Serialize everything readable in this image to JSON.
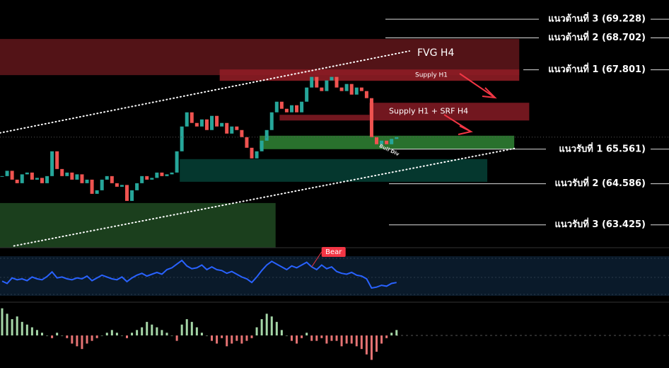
{
  "chart_data": {
    "type": "candlestick",
    "ylim": [
      62.78,
      69.77
    ],
    "closes": [
      64.8,
      64.95,
      64.7,
      64.6,
      64.85,
      64.9,
      64.7,
      64.75,
      64.6,
      64.8,
      65.5,
      65.0,
      64.8,
      64.9,
      64.7,
      64.85,
      64.6,
      64.7,
      64.3,
      64.4,
      64.7,
      64.8,
      64.6,
      64.5,
      64.55,
      64.1,
      64.4,
      64.6,
      64.8,
      64.7,
      64.75,
      64.9,
      64.8,
      64.85,
      64.9,
      65.5,
      66.2,
      66.6,
      66.3,
      66.2,
      66.4,
      66.1,
      66.5,
      66.2,
      66.3,
      66.0,
      66.2,
      66.1,
      65.9,
      65.6,
      65.3,
      65.5,
      65.8,
      66.1,
      66.6,
      66.9,
      66.7,
      66.6,
      66.8,
      66.6,
      66.9,
      67.3,
      67.6,
      67.3,
      67.2,
      67.5,
      67.6,
      67.3,
      67.2,
      67.4,
      67.1,
      67.3,
      67.2,
      67.0,
      65.9,
      65.7,
      65.8,
      65.7,
      65.85,
      65.9
    ],
    "up_color": "#26a69a",
    "down_color": "#ef5350",
    "levels": [
      {
        "label": "แนวต้านที่ 3 (69.228)",
        "value": 69.228
      },
      {
        "label": "แนวต้านที่ 2 (68.702)",
        "value": 68.702
      },
      {
        "label": "แนวต้านที่ 1 (67.801)",
        "value": 67.801
      },
      {
        "label": "แนวรับที่ 1  65.561)",
        "value": 65.561
      },
      {
        "label": "แนวรับที่ 2  (64.586)",
        "value": 64.586
      },
      {
        "label": "แนวรับที่ 3 (63.425)",
        "value": 63.425
      }
    ],
    "zones": [
      {
        "label": "FVG H4",
        "low": 67.65,
        "high": 68.67,
        "start": 0,
        "end": 104,
        "color": "#5c1519"
      },
      {
        "label": "Supply H1",
        "low": 67.49,
        "high": 67.81,
        "start": 44,
        "end": 104,
        "color": "#8e1d25"
      },
      {
        "label": "Supply H1 + SRF H4",
        "low": 66.37,
        "high": 66.87,
        "start": 74,
        "end": 106,
        "color": "#7e1a22"
      },
      {
        "low": 66.37,
        "high": 66.53,
        "start": 56,
        "end": 74,
        "color": "#7e1a22"
      },
      {
        "low": 65.56,
        "high": 65.94,
        "start": 52,
        "end": 103,
        "color": "#2e7d32"
      },
      {
        "low": 64.64,
        "high": 65.28,
        "start": 36,
        "end": 97.6,
        "color": "#063d33"
      },
      {
        "low": 62.78,
        "high": 64.04,
        "start": 0,
        "end": 55.2,
        "color": "#1e4620"
      }
    ],
    "trendlines": [
      {
        "x": [
          0,
          82
        ],
        "values": [
          66.02,
          68.33
        ]
      },
      {
        "x": [
          2.8,
          103
        ],
        "values": [
          62.83,
          65.58
        ]
      }
    ],
    "annotations": [
      {
        "text": "Bull Div",
        "x": 76,
        "value": 65.66
      }
    ],
    "oscillator": {
      "ylim": [
        0,
        100
      ],
      "color": "#2962ff",
      "label": "Bear",
      "label_index": 62,
      "values": [
        35,
        30,
        42,
        38,
        40,
        36,
        44,
        40,
        38,
        45,
        55,
        42,
        44,
        40,
        38,
        42,
        40,
        46,
        36,
        42,
        48,
        44,
        40,
        38,
        44,
        34,
        42,
        48,
        52,
        46,
        50,
        54,
        50,
        60,
        64,
        72,
        80,
        68,
        62,
        64,
        70,
        60,
        66,
        60,
        58,
        52,
        56,
        50,
        44,
        40,
        32,
        44,
        58,
        70,
        78,
        72,
        66,
        60,
        68,
        64,
        70,
        76,
        66,
        60,
        70,
        62,
        66,
        56,
        52,
        50,
        54,
        48,
        46,
        40,
        20,
        22,
        26,
        24,
        30,
        32
      ]
    },
    "histogram": {
      "ylim": [
        -12,
        12
      ],
      "values": [
        10,
        8,
        6,
        7,
        5,
        4,
        3,
        2,
        1,
        0,
        -1,
        1,
        0,
        -1,
        -3,
        -4,
        -5,
        -3,
        -2,
        -1,
        0,
        1,
        2,
        1,
        0,
        -1,
        1,
        2,
        3,
        5,
        4,
        3,
        2,
        1,
        0,
        -2,
        4,
        6,
        5,
        3,
        1,
        0,
        -2,
        -3,
        -1,
        -4,
        -3,
        -2,
        -3,
        -2,
        -1,
        3,
        6,
        8,
        7,
        5,
        2,
        0,
        -2,
        -3,
        -1,
        1,
        -2,
        -2,
        -1,
        -3,
        -2,
        -2,
        -4,
        -3,
        -3,
        -4,
        -5,
        -7,
        -9,
        -6,
        -3,
        -1,
        1,
        2
      ]
    }
  }
}
